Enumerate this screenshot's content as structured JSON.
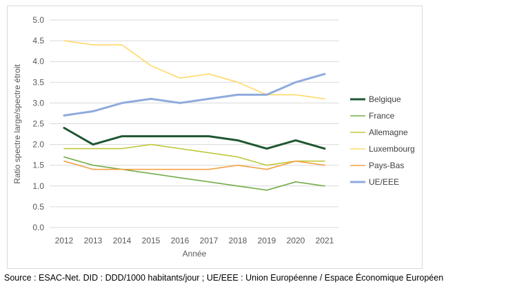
{
  "chart_data": {
    "type": "line",
    "xlabel": "Année",
    "ylabel": "Ratio spectre large/spectre étroit",
    "ylim": [
      0,
      5
    ],
    "y_ticks": [
      "0.0",
      "0.5",
      "1.0",
      "1.5",
      "2.0",
      "2.5",
      "3.0",
      "3.5",
      "4.0",
      "4.5",
      "5.0"
    ],
    "categories": [
      "2012",
      "2013",
      "2014",
      "2015",
      "2016",
      "2017",
      "2018",
      "2019",
      "2020",
      "2021"
    ],
    "grid": true,
    "legend_position": "right",
    "series": [
      {
        "name": "Belgique",
        "color": "#1e5631",
        "values": [
          2.4,
          2.0,
          2.2,
          2.2,
          2.2,
          2.2,
          2.1,
          1.9,
          2.1,
          1.9
        ]
      },
      {
        "name": "France",
        "color": "#70ad47",
        "values": [
          1.7,
          1.5,
          1.4,
          1.3,
          1.2,
          1.1,
          1.0,
          0.9,
          1.1,
          1.0
        ]
      },
      {
        "name": "Allemagne",
        "color": "#bfc93a",
        "values": [
          1.9,
          1.9,
          1.9,
          2.0,
          1.9,
          1.8,
          1.7,
          1.5,
          1.6,
          1.6
        ]
      },
      {
        "name": "Luxembourg",
        "color": "#ffd966",
        "values": [
          4.5,
          4.4,
          4.4,
          3.9,
          3.6,
          3.7,
          3.5,
          3.2,
          3.2,
          3.1
        ]
      },
      {
        "name": "Pays-Bas",
        "color": "#f4a044",
        "values": [
          1.6,
          1.4,
          1.4,
          1.4,
          1.4,
          1.4,
          1.5,
          1.4,
          1.6,
          1.5
        ]
      },
      {
        "name": "UE/EEE",
        "color": "#8faadc",
        "values": [
          2.7,
          2.8,
          3.0,
          3.1,
          3.0,
          3.1,
          3.2,
          3.2,
          3.5,
          3.7
        ]
      }
    ]
  },
  "source_note": "Source : ESAC-Net. DID : DDD/1000 habitants/jour ; UE/EEE : Union Européenne / Espace Économique Européen"
}
